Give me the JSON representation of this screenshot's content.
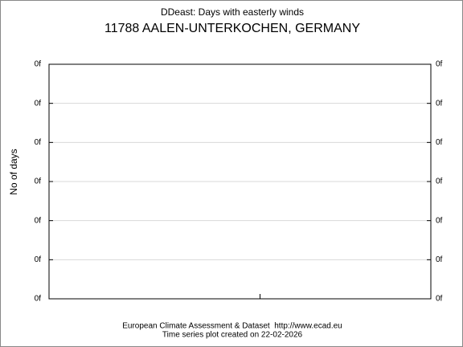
{
  "chart_data": {
    "type": "line",
    "title": "DDeast: Days with easterly winds",
    "subtitle": "11788 AALEN-UNTERKOCHEN, GERMANY",
    "y_label": "No of days",
    "footer": [
      "European Climate Assessment & Dataset  http://www.ecad.eu",
      "Time series plot created on 22-02-2026"
    ],
    "series": [],
    "ylim": [
      0,
      6
    ],
    "yticks": [
      {
        "value": 0,
        "label": "0f"
      },
      {
        "value": 1,
        "label": "0f"
      },
      {
        "value": 2,
        "label": "0f"
      },
      {
        "value": 3,
        "label": "0f"
      },
      {
        "value": 4,
        "label": "0f"
      },
      {
        "value": 5,
        "label": "0f"
      },
      {
        "value": 6,
        "label": "0f"
      }
    ],
    "grid": true
  }
}
